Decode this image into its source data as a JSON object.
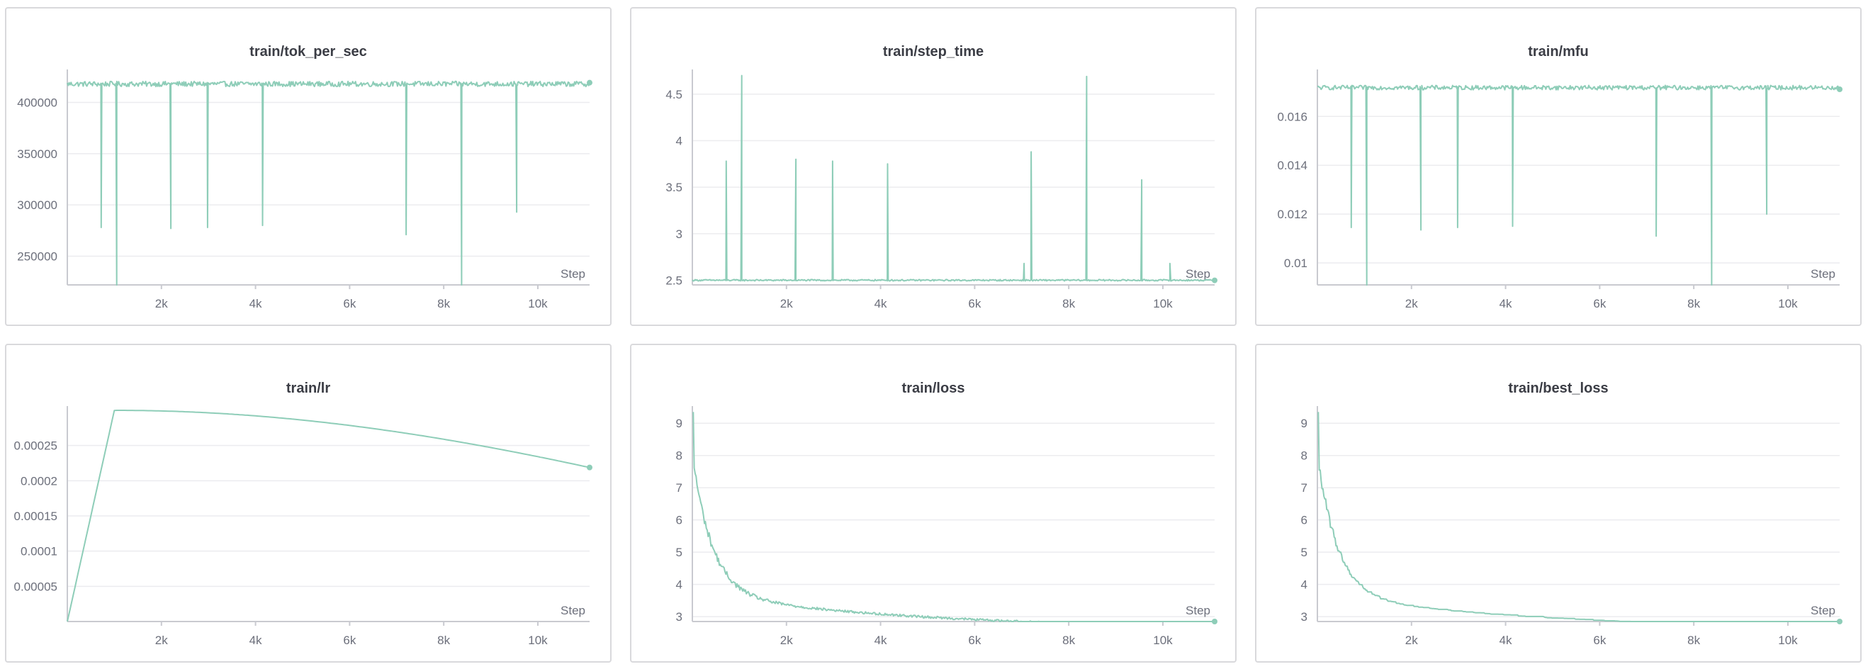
{
  "colors": {
    "series": "#8ecdb8",
    "grid": "#ececef",
    "axis": "#c9cad0",
    "tick_text": "#6c6f7b",
    "title": "#3b3d45"
  },
  "charts": [
    {
      "id": "tok_per_sec",
      "title": "train/tok_per_sec",
      "type": "line",
      "xlabel": "Step",
      "xlim": [
        0,
        11100
      ],
      "ylim": [
        222000,
        428000
      ],
      "xticks": [
        2000,
        4000,
        6000,
        8000,
        10000
      ],
      "xtick_labels": [
        "2k",
        "4k",
        "6k",
        "8k",
        "10k"
      ],
      "yticks": [
        250000,
        300000,
        350000,
        400000
      ],
      "ytick_labels": [
        "250000",
        "300000",
        "350000",
        "400000"
      ],
      "pattern": "flat_dips",
      "base": 418000,
      "noise": 2500,
      "end_marker": true,
      "events": [
        [
          720,
          278000
        ],
        [
          1050,
          222000
        ],
        [
          2200,
          277000
        ],
        [
          2980,
          278000
        ],
        [
          4150,
          280000
        ],
        [
          7200,
          271000
        ],
        [
          8380,
          222000
        ],
        [
          9550,
          293000
        ]
      ]
    },
    {
      "id": "step_time",
      "title": "train/step_time",
      "type": "line",
      "xlabel": "Step",
      "xlim": [
        0,
        11100
      ],
      "ylim": [
        2.45,
        4.72
      ],
      "xticks": [
        2000,
        4000,
        6000,
        8000,
        10000
      ],
      "xtick_labels": [
        "2k",
        "4k",
        "6k",
        "8k",
        "10k"
      ],
      "yticks": [
        2.5,
        3,
        3.5,
        4,
        4.5
      ],
      "ytick_labels": [
        "2.5",
        "3",
        "3.5",
        "4",
        "4.5"
      ],
      "pattern": "flat_spikes",
      "base": 2.5,
      "noise": 0.008,
      "end_marker": true,
      "events": [
        [
          720,
          3.78
        ],
        [
          1050,
          4.7
        ],
        [
          2200,
          3.8
        ],
        [
          2980,
          3.78
        ],
        [
          4150,
          3.75
        ],
        [
          7050,
          2.68
        ],
        [
          7200,
          3.88
        ],
        [
          8380,
          4.69
        ],
        [
          9550,
          3.58
        ],
        [
          10150,
          2.68
        ]
      ]
    },
    {
      "id": "mfu",
      "title": "train/mfu",
      "type": "line",
      "xlabel": "Step",
      "xlim": [
        0,
        11100
      ],
      "ylim": [
        0.0091,
        0.01775
      ],
      "xticks": [
        2000,
        4000,
        6000,
        8000,
        10000
      ],
      "xtick_labels": [
        "2k",
        "4k",
        "6k",
        "8k",
        "10k"
      ],
      "yticks": [
        0.01,
        0.012,
        0.014,
        0.016
      ],
      "ytick_labels": [
        "0.01",
        "0.012",
        "0.014",
        "0.016"
      ],
      "pattern": "flat_dips",
      "base": 0.01718,
      "noise": 9e-05,
      "end_marker": true,
      "events": [
        [
          720,
          0.01145
        ],
        [
          1050,
          0.0091
        ],
        [
          2200,
          0.01135
        ],
        [
          2980,
          0.01145
        ],
        [
          4150,
          0.0115
        ],
        [
          7200,
          0.0111
        ],
        [
          8380,
          0.0091
        ],
        [
          9550,
          0.012
        ]
      ]
    },
    {
      "id": "lr",
      "title": "train/lr",
      "type": "line",
      "xlabel": "Step",
      "xlim": [
        0,
        11100
      ],
      "ylim": [
        0,
        0.0003
      ],
      "xticks": [
        2000,
        4000,
        6000,
        8000,
        10000
      ],
      "xtick_labels": [
        "2k",
        "4k",
        "6k",
        "8k",
        "10k"
      ],
      "yticks": [
        5e-05,
        0.0001,
        0.00015,
        0.0002,
        0.00025
      ],
      "ytick_labels": [
        "0.00005",
        "0.0001",
        "0.00015",
        "0.0002",
        "0.00025"
      ],
      "pattern": "lr_schedule",
      "peak": 0.0003,
      "warmup": 1000,
      "decay_end": 30000,
      "end_marker": true,
      "events": []
    },
    {
      "id": "loss",
      "title": "train/loss",
      "type": "line",
      "xlabel": "Step",
      "xlim": [
        0,
        11100
      ],
      "ylim": [
        2.85,
        9.4
      ],
      "xticks": [
        2000,
        4000,
        6000,
        8000,
        10000
      ],
      "xtick_labels": [
        "2k",
        "4k",
        "6k",
        "8k",
        "10k"
      ],
      "yticks": [
        3,
        4,
        5,
        6,
        7,
        8,
        9
      ],
      "ytick_labels": [
        "3",
        "4",
        "5",
        "6",
        "7",
        "8",
        "9"
      ],
      "pattern": "decay_noisy",
      "start": 9.35,
      "floor": 2.55,
      "k1": 4.35,
      "t1": 420,
      "k2": 1.15,
      "t2": 5200,
      "noise": 0.035,
      "end_marker": true,
      "events": []
    },
    {
      "id": "best_loss",
      "title": "train/best_loss",
      "type": "line",
      "xlabel": "Step",
      "xlim": [
        0,
        11100
      ],
      "ylim": [
        2.85,
        9.4
      ],
      "xticks": [
        2000,
        4000,
        6000,
        8000,
        10000
      ],
      "xtick_labels": [
        "2k",
        "4k",
        "6k",
        "8k",
        "10k"
      ],
      "yticks": [
        3,
        4,
        5,
        6,
        7,
        8,
        9
      ],
      "ytick_labels": [
        "3",
        "4",
        "5",
        "6",
        "7",
        "8",
        "9"
      ],
      "pattern": "decay_min",
      "start": 9.35,
      "floor": 2.55,
      "k1": 4.35,
      "t1": 420,
      "k2": 1.15,
      "t2": 5200,
      "noise": 0.035,
      "end_marker": true,
      "events": []
    }
  ]
}
